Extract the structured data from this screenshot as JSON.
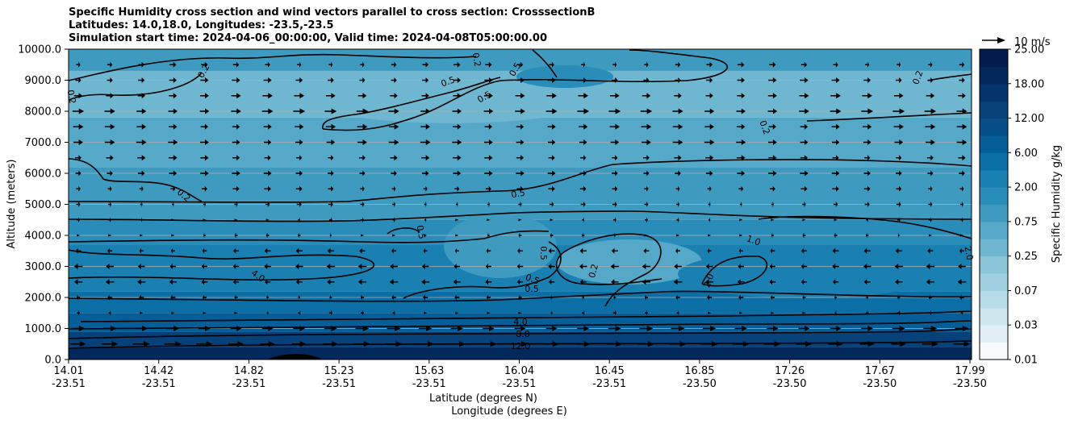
{
  "chart_data": {
    "type": "heatmap",
    "title_lines": [
      "Specific Humidity cross section and wind vectors parallel to cross section: CrosssectionB",
      "Latitudes: 14.0,18.0, Longitudes: -23.5,-23.5",
      "Simulation start time: 2024-04-06_00:00:00, Valid time: 2024-04-08T05:00:00.00"
    ],
    "xlabel_line1": "Latitude (degrees N)",
    "xlabel_line2": "Longitude (degrees E)",
    "ylabel": "Altitude (meters)",
    "ylim": [
      0,
      10000
    ],
    "yticks": [
      "0.0",
      "1000.0",
      "2000.0",
      "3000.0",
      "4000.0",
      "5000.0",
      "6000.0",
      "7000.0",
      "8000.0",
      "9000.0",
      "10000.0"
    ],
    "xticks": [
      {
        "lat": "14.01",
        "lon": "-23.51"
      },
      {
        "lat": "14.42",
        "lon": "-23.51"
      },
      {
        "lat": "14.82",
        "lon": "-23.51"
      },
      {
        "lat": "15.23",
        "lon": "-23.51"
      },
      {
        "lat": "15.63",
        "lon": "-23.51"
      },
      {
        "lat": "16.04",
        "lon": "-23.51"
      },
      {
        "lat": "16.45",
        "lon": "-23.51"
      },
      {
        "lat": "16.85",
        "lon": "-23.50"
      },
      {
        "lat": "17.26",
        "lon": "-23.50"
      },
      {
        "lat": "17.67",
        "lon": "-23.50"
      },
      {
        "lat": "17.99",
        "lon": "-23.50"
      }
    ],
    "grid_y": true,
    "colorbar": {
      "label": "Specific Humidity g/kg",
      "tick_labels": [
        "0.01",
        "0.03",
        "0.07",
        "0.25",
        "0.75",
        "2.00",
        "6.00",
        "12.00",
        "18.00",
        "25.00"
      ],
      "levels": [
        0.01,
        0.02,
        0.03,
        0.05,
        0.07,
        0.1,
        0.25,
        0.5,
        0.75,
        1,
        2,
        4,
        6,
        8,
        12,
        15,
        18,
        20,
        25
      ],
      "colors": [
        "#f7fbfd",
        "#e2f0f5",
        "#cde7ee",
        "#b6dce7",
        "#a0d0df",
        "#8ac4d7",
        "#6fb6d0",
        "#55a8c8",
        "#3f9abf",
        "#2a8cb8",
        "#1a7fb1",
        "#0b6ea5",
        "#065e98",
        "#064f89",
        "#06417a",
        "#04346b",
        "#03285c",
        "#021c4d"
      ]
    },
    "contour_labels": [
      "0.2",
      "0.5",
      "1.0",
      "2.0",
      "4.0",
      "8.0",
      "12.0"
    ],
    "wind_key": "10 m/s",
    "wind_rows": [
      {
        "alt": 500,
        "u": 9
      },
      {
        "alt": 1000,
        "u": 7
      },
      {
        "alt": 1500,
        "u": 1
      },
      {
        "alt": 2000,
        "u": -2
      },
      {
        "alt": 2500,
        "u": -4
      },
      {
        "alt": 3000,
        "u": -4
      },
      {
        "alt": 3500,
        "u": -3
      },
      {
        "alt": 4000,
        "u": -1
      },
      {
        "alt": 4500,
        "u": 1
      },
      {
        "alt": 5000,
        "u": 2
      },
      {
        "alt": 5500,
        "u": 3
      },
      {
        "alt": 6000,
        "u": 4
      },
      {
        "alt": 6500,
        "u": 4
      },
      {
        "alt": 7000,
        "u": 5
      },
      {
        "alt": 7500,
        "u": 5
      },
      {
        "alt": 8000,
        "u": 6
      },
      {
        "alt": 8500,
        "u": 5
      },
      {
        "alt": 9000,
        "u": 4
      },
      {
        "alt": 9500,
        "u": 3
      }
    ]
  }
}
